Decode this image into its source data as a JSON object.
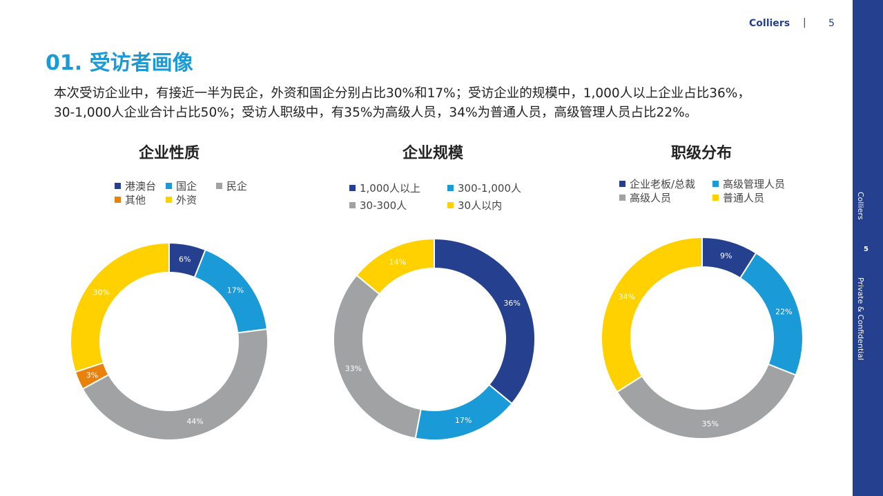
{
  "header": {
    "brand": "Colliers",
    "separator": "|",
    "page_number": "5"
  },
  "sidebar": {
    "label_top": "Colliers",
    "page_number": "5",
    "label_bottom": "Private & Confidential"
  },
  "page_title": "01. 受访者画像",
  "summary_lines": [
    "本次受访企业中，有接近一半为民企，外资和国企分别占比30%和17%；受访企业的规模中，1,000人以上企业占比36%，",
    "30-1,000人企业合计占比50%；受访人职级中，有35%为高级人员，34%为普通人员，高级管理人员占比22%。"
  ],
  "chart_data": [
    {
      "type": "pie",
      "title": "企业性质",
      "categories": [
        "港澳台",
        "国企",
        "民企",
        "其他",
        "外资"
      ],
      "values": [
        6,
        17,
        44,
        3,
        30
      ],
      "labels": [
        "6%",
        "17%",
        "44%",
        "3%",
        "30%"
      ],
      "colors": [
        "#25408f",
        "#1a9ad6",
        "#a0a2a3",
        "#e8820c",
        "#ffd100"
      ],
      "legend_position": "top"
    },
    {
      "type": "pie",
      "title": "企业规模",
      "categories": [
        "1,000人以上",
        "300-1,000人",
        "30-300人",
        "30人以内"
      ],
      "values": [
        36,
        17,
        33,
        14
      ],
      "labels": [
        "36%",
        "17%",
        "33%",
        "14%"
      ],
      "colors": [
        "#25408f",
        "#1a9ad6",
        "#a0a2a3",
        "#ffd100"
      ],
      "legend_position": "top"
    },
    {
      "type": "pie",
      "title": "职级分布",
      "categories": [
        "企业老板/总裁",
        "高级管理人员",
        "高级人员",
        "普通人员"
      ],
      "values": [
        9,
        22,
        35,
        34
      ],
      "labels": [
        "9%",
        "22%",
        "35%",
        "34%"
      ],
      "colors": [
        "#25408f",
        "#1a9ad6",
        "#a0a2a3",
        "#ffd100"
      ],
      "legend_position": "top"
    }
  ]
}
